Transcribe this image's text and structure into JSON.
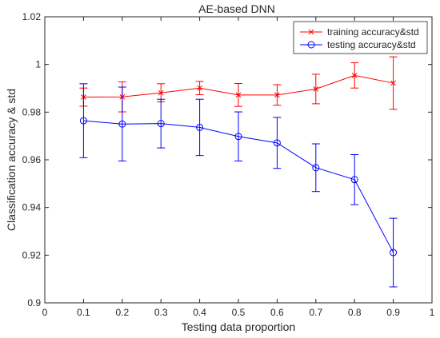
{
  "chart_data": {
    "type": "line",
    "title": "AE-based DNN",
    "xlabel": "Testing data proportion",
    "ylabel": "Classification accuracy & std",
    "xlim": [
      0,
      1
    ],
    "ylim": [
      0.9,
      1.02
    ],
    "xticks": [
      0,
      0.1,
      0.2,
      0.3,
      0.4,
      0.5,
      0.6,
      0.7,
      0.8,
      0.9,
      1
    ],
    "xtick_labels": [
      "0",
      "0.1",
      "0.2",
      "0.3",
      "0.4",
      "0.5",
      "0.6",
      "0.7",
      "0.8",
      "0.9",
      "1"
    ],
    "yticks": [
      0.9,
      0.92,
      0.94,
      0.96,
      0.98,
      1,
      1.02
    ],
    "ytick_labels": [
      "0.9",
      "0.92",
      "0.94",
      "0.96",
      "0.98",
      "1",
      "1.02"
    ],
    "grid": false,
    "legend_position": "top-right",
    "x": [
      0.1,
      0.2,
      0.3,
      0.4,
      0.5,
      0.6,
      0.7,
      0.8,
      0.9
    ],
    "series": [
      {
        "name": "training accuracy&std",
        "color": "#ff0000",
        "marker": "x",
        "values": [
          0.9863,
          0.9864,
          0.9881,
          0.9901,
          0.9872,
          0.9872,
          0.9897,
          0.9954,
          0.9922
        ],
        "std": [
          0.0038,
          0.0063,
          0.0038,
          0.0028,
          0.0048,
          0.0043,
          0.0062,
          0.0053,
          0.011
        ]
      },
      {
        "name": "testing accuracy&std",
        "color": "#0000ff",
        "marker": "o",
        "values": [
          0.9764,
          0.975,
          0.9752,
          0.9736,
          0.9698,
          0.9671,
          0.9567,
          0.9517,
          0.9211
        ],
        "std": [
          0.0155,
          0.0155,
          0.0102,
          0.0118,
          0.0103,
          0.0107,
          0.01,
          0.0105,
          0.0144
        ]
      }
    ]
  }
}
